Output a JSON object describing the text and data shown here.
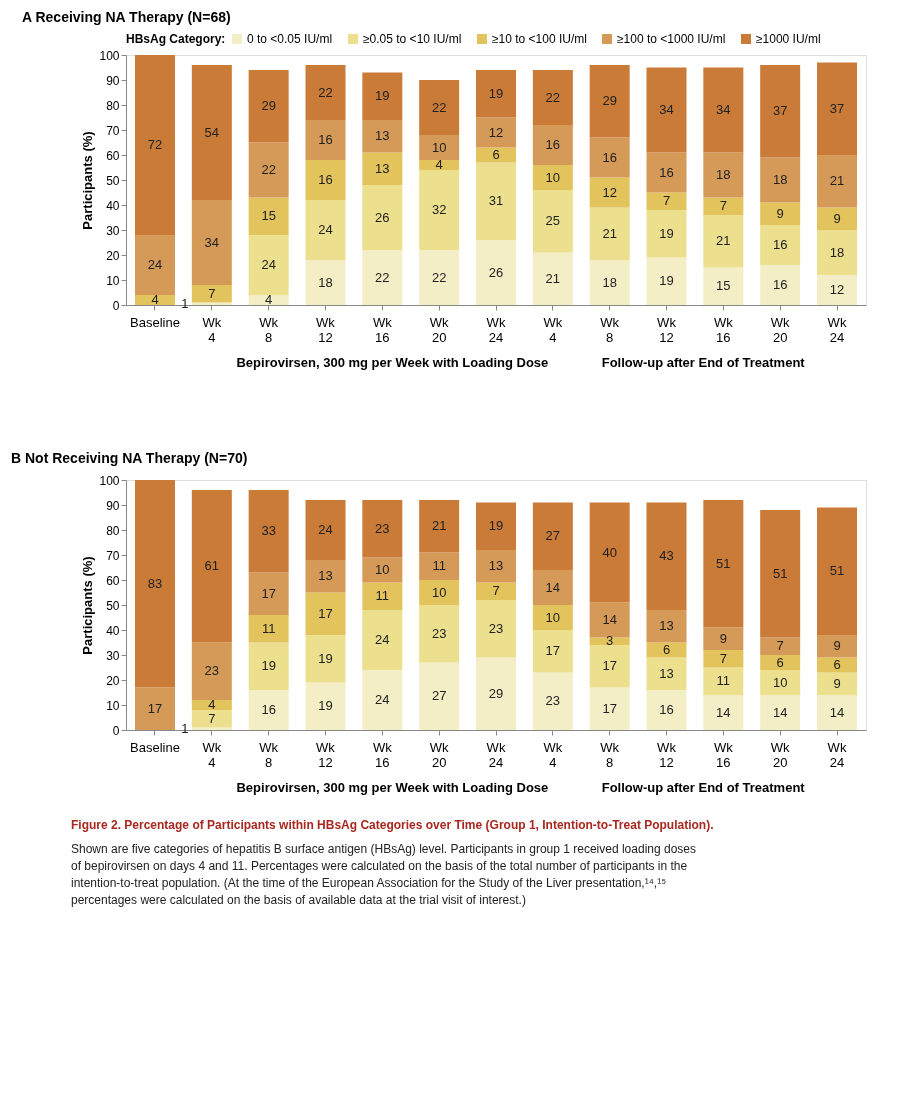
{
  "chart_data": [
    {
      "type": "bar",
      "stacked": true,
      "title": "A Receiving NA Therapy (N=68)",
      "ylabel": "Participants (%)",
      "legend_title": "HBsAg Category:",
      "legend": "top",
      "grid": false,
      "data_labels": true,
      "categories": [
        "Baseline",
        "Wk 4",
        "Wk 8",
        "Wk 12",
        "Wk 16",
        "Wk 20",
        "Wk 24",
        "Wk 4",
        "Wk 8",
        "Wk 12",
        "Wk 16",
        "Wk 20",
        "Wk 24"
      ],
      "ylim": [
        0,
        100
      ],
      "yticks": [
        0,
        10,
        20,
        30,
        40,
        50,
        60,
        70,
        80,
        90,
        100
      ],
      "series": [
        {
          "name": "0 to <0.05 IU/ml",
          "color": "#f4eec6",
          "values": [
            null,
            1,
            4,
            18,
            22,
            22,
            26,
            21,
            18,
            19,
            15,
            16,
            12
          ]
        },
        {
          "name": "≥0.05 to <10 IU/ml",
          "color": "#ece08f",
          "values": [
            null,
            null,
            24,
            24,
            26,
            32,
            31,
            25,
            21,
            19,
            21,
            16,
            18
          ]
        },
        {
          "name": "≥10 to <100 IU/ml",
          "color": "#e2c35c",
          "values": [
            4,
            7,
            15,
            16,
            13,
            4,
            6,
            10,
            12,
            7,
            7,
            9,
            9
          ]
        },
        {
          "name": "≥100 to <1000 IU/ml",
          "color": "#d59a57",
          "values": [
            24,
            34,
            22,
            16,
            13,
            10,
            12,
            16,
            16,
            16,
            18,
            18,
            21
          ]
        },
        {
          "name": "≥1000 IU/ml",
          "color": "#c97b37",
          "values": [
            72,
            54,
            29,
            22,
            19,
            22,
            19,
            22,
            29,
            34,
            34,
            37,
            37
          ]
        }
      ],
      "annotations": [
        "Bepirovirsen, 300 mg per Week with Loading Dose",
        "Follow-up after End of Treatment"
      ]
    },
    {
      "type": "bar",
      "stacked": true,
      "title": "B Not Receiving NA Therapy (N=70)",
      "ylabel": "Participants (%)",
      "grid": false,
      "data_labels": true,
      "categories": [
        "Baseline",
        "Wk 4",
        "Wk 8",
        "Wk 12",
        "Wk 16",
        "Wk 20",
        "Wk 24",
        "Wk 4",
        "Wk 8",
        "Wk 12",
        "Wk 16",
        "Wk 20",
        "Wk 24"
      ],
      "ylim": [
        0,
        100
      ],
      "yticks": [
        0,
        10,
        20,
        30,
        40,
        50,
        60,
        70,
        80,
        90,
        100
      ],
      "series": [
        {
          "color": "#f4eec6",
          "values": [
            null,
            1,
            16,
            19,
            24,
            27,
            29,
            23,
            17,
            16,
            14,
            14,
            14
          ]
        },
        {
          "color": "#ece08f",
          "values": [
            null,
            7,
            19,
            19,
            24,
            23,
            23,
            17,
            17,
            13,
            11,
            10,
            9
          ]
        },
        {
          "color": "#e2c35c",
          "values": [
            null,
            4,
            11,
            17,
            11,
            10,
            7,
            10,
            3,
            6,
            7,
            6,
            6
          ]
        },
        {
          "color": "#d59a57",
          "values": [
            17,
            23,
            17,
            13,
            10,
            11,
            13,
            14,
            14,
            13,
            9,
            7,
            9
          ]
        },
        {
          "color": "#c97b37",
          "values": [
            83,
            61,
            33,
            24,
            23,
            21,
            19,
            27,
            40,
            43,
            51,
            51,
            51
          ]
        }
      ],
      "annotations": [
        "Bepirovirsen, 300 mg per Week with Loading Dose",
        "Follow-up after End of Treatment",
        "Figure 2. Percentage of Participants within HBsAg Categories over Time (Group 1, Intention-to-Treat Population).",
        "Shown are five categories of hepatitis B surface antigen (HBsAg) level. Participants in group 1 received loading doses of bepirovirsen on days 4 and 11. Percentages were calculated on the basis of the total number of participants in the intention-to-treat population. (At the time of the European Association for the Study of the Liver presentation,¹⁴,¹⁵ percentages were calculated on the basis of available data at the trial visit of interest.)"
      ]
    }
  ]
}
